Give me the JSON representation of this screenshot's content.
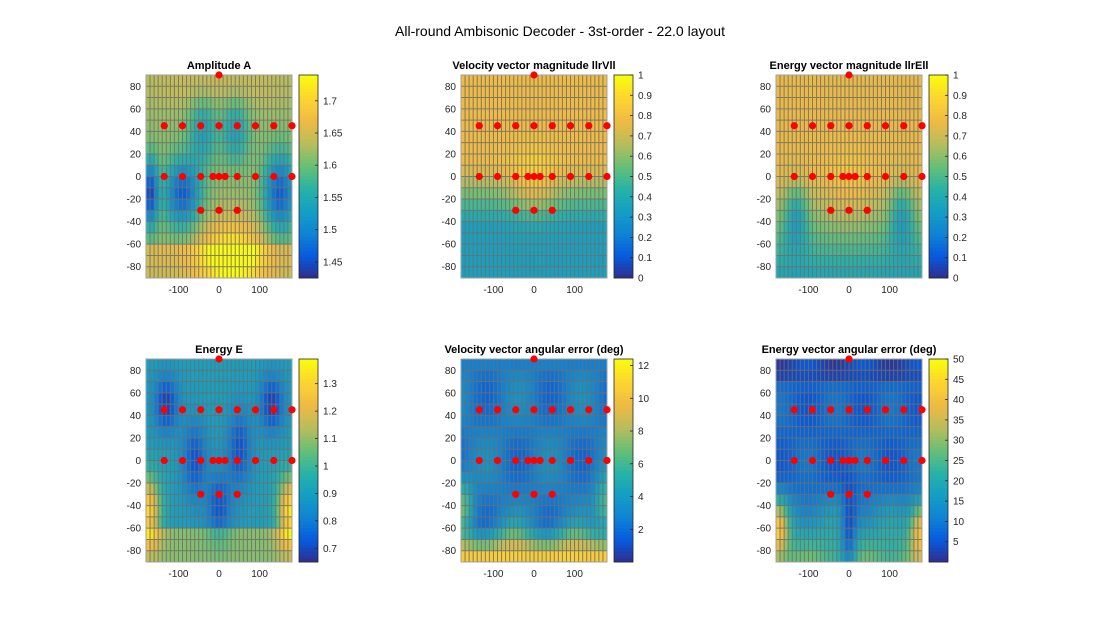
{
  "figure_title": "All-round Ambisonic Decoder - 3st-order - 22.0 layout",
  "colors": {
    "speaker_marker": "#ff0000",
    "grid": "#6e6e6e",
    "axes_border": "#a0a0a0"
  },
  "chart_data": [
    {
      "type": "heatmap",
      "title": "Amplitude A",
      "xlim": [
        -180,
        180
      ],
      "ylim": [
        -90,
        90
      ],
      "xticks": [
        "-100",
        "0",
        "100"
      ],
      "xtick_values": [
        -100,
        0,
        100
      ],
      "yticks": [
        "80",
        "60",
        "40",
        "20",
        "0",
        "-20",
        "-40",
        "-60",
        "-80"
      ],
      "ytick_values": [
        80,
        60,
        40,
        20,
        0,
        -20,
        -40,
        -60,
        -80
      ],
      "colorbar": {
        "range": [
          1.425,
          1.74
        ],
        "ticks": [
          "1.45",
          "1.5",
          "1.55",
          "1.6",
          "1.65",
          "1.7"
        ],
        "tick_values": [
          1.45,
          1.5,
          1.55,
          1.6,
          1.65,
          1.7
        ]
      },
      "field": "amplitude"
    },
    {
      "type": "heatmap",
      "title": "Velocity vector magnitude llrVll",
      "xlim": [
        -180,
        180
      ],
      "ylim": [
        -90,
        90
      ],
      "xticks": [
        "-100",
        "0",
        "100"
      ],
      "xtick_values": [
        -100,
        0,
        100
      ],
      "yticks": [
        "80",
        "60",
        "40",
        "20",
        "0",
        "-20",
        "-40",
        "-60",
        "-80"
      ],
      "ytick_values": [
        80,
        60,
        40,
        20,
        0,
        -20,
        -40,
        -60,
        -80
      ],
      "colorbar": {
        "range": [
          0,
          1
        ],
        "ticks": [
          "0",
          "0.1",
          "0.2",
          "0.3",
          "0.4",
          "0.5",
          "0.6",
          "0.7",
          "0.8",
          "0.9",
          "1"
        ],
        "tick_values": [
          0,
          0.1,
          0.2,
          0.3,
          0.4,
          0.5,
          0.6,
          0.7,
          0.8,
          0.9,
          1
        ]
      },
      "field": "rv"
    },
    {
      "type": "heatmap",
      "title": "Energy vector magnitude llrEll",
      "xlim": [
        -180,
        180
      ],
      "ylim": [
        -90,
        90
      ],
      "xticks": [
        "-100",
        "0",
        "100"
      ],
      "xtick_values": [
        -100,
        0,
        100
      ],
      "yticks": [
        "80",
        "60",
        "40",
        "20",
        "0",
        "-20",
        "-40",
        "-60",
        "-80"
      ],
      "ytick_values": [
        80,
        60,
        40,
        20,
        0,
        -20,
        -40,
        -60,
        -80
      ],
      "colorbar": {
        "range": [
          0,
          1
        ],
        "ticks": [
          "0",
          "0.1",
          "0.2",
          "0.3",
          "0.4",
          "0.5",
          "0.6",
          "0.7",
          "0.8",
          "0.9",
          "1"
        ],
        "tick_values": [
          0,
          0.1,
          0.2,
          0.3,
          0.4,
          0.5,
          0.6,
          0.7,
          0.8,
          0.9,
          1
        ]
      },
      "field": "re"
    },
    {
      "type": "heatmap",
      "title": "Energy E",
      "xlim": [
        -180,
        180
      ],
      "ylim": [
        -90,
        90
      ],
      "xticks": [
        "-100",
        "0",
        "100"
      ],
      "xtick_values": [
        -100,
        0,
        100
      ],
      "yticks": [
        "80",
        "60",
        "40",
        "20",
        "0",
        "-20",
        "-40",
        "-60",
        "-80"
      ],
      "ytick_values": [
        80,
        60,
        40,
        20,
        0,
        -20,
        -40,
        -60,
        -80
      ],
      "colorbar": {
        "range": [
          0.65,
          1.39
        ],
        "ticks": [
          "0.7",
          "0.8",
          "0.9",
          "1",
          "1.1",
          "1.2",
          "1.3"
        ],
        "tick_values": [
          0.7,
          0.8,
          0.9,
          1,
          1.1,
          1.2,
          1.3
        ]
      },
      "field": "energy"
    },
    {
      "type": "heatmap",
      "title": "Velocity vector angular error (deg)",
      "xlim": [
        -180,
        180
      ],
      "ylim": [
        -90,
        90
      ],
      "xticks": [
        "-100",
        "0",
        "100"
      ],
      "xtick_values": [
        -100,
        0,
        100
      ],
      "yticks": [
        "80",
        "60",
        "40",
        "20",
        "0",
        "-20",
        "-40",
        "-60",
        "-80"
      ],
      "ytick_values": [
        80,
        60,
        40,
        20,
        0,
        -20,
        -40,
        -60,
        -80
      ],
      "colorbar": {
        "range": [
          0,
          12.4
        ],
        "ticks": [
          "2",
          "4",
          "6",
          "8",
          "10",
          "12"
        ],
        "tick_values": [
          2,
          4,
          6,
          8,
          10,
          12
        ]
      },
      "field": "verr"
    },
    {
      "type": "heatmap",
      "title": "Energy vector angular error (deg)",
      "xlim": [
        -180,
        180
      ],
      "ylim": [
        -90,
        90
      ],
      "xticks": [
        "-100",
        "0",
        "100"
      ],
      "xtick_values": [
        -100,
        0,
        100
      ],
      "yticks": [
        "80",
        "60",
        "40",
        "20",
        "0",
        "-20",
        "-40",
        "-60",
        "-80"
      ],
      "ytick_values": [
        80,
        60,
        40,
        20,
        0,
        -20,
        -40,
        -60,
        -80
      ],
      "colorbar": {
        "range": [
          0,
          50
        ],
        "ticks": [
          "5",
          "10",
          "15",
          "20",
          "25",
          "30",
          "35",
          "40",
          "45",
          "50"
        ],
        "tick_values": [
          5,
          10,
          15,
          20,
          25,
          30,
          35,
          40,
          45,
          50
        ]
      },
      "field": "eerr"
    }
  ],
  "speakers": [
    {
      "az": 0,
      "el": 90
    },
    {
      "az": -135,
      "el": 45
    },
    {
      "az": -90,
      "el": 45
    },
    {
      "az": -45,
      "el": 45
    },
    {
      "az": 0,
      "el": 45
    },
    {
      "az": 45,
      "el": 45
    },
    {
      "az": 90,
      "el": 45
    },
    {
      "az": 135,
      "el": 45
    },
    {
      "az": 180,
      "el": 45
    },
    {
      "az": -135,
      "el": 0
    },
    {
      "az": -90,
      "el": 0
    },
    {
      "az": -45,
      "el": 0
    },
    {
      "az": -15,
      "el": 0
    },
    {
      "az": 0,
      "el": 0
    },
    {
      "az": 15,
      "el": 0
    },
    {
      "az": 45,
      "el": 0
    },
    {
      "az": 90,
      "el": 0
    },
    {
      "az": 135,
      "el": 0
    },
    {
      "az": 180,
      "el": 0
    },
    {
      "az": -45,
      "el": -30
    },
    {
      "az": 0,
      "el": -30
    },
    {
      "az": 45,
      "el": -30
    }
  ]
}
